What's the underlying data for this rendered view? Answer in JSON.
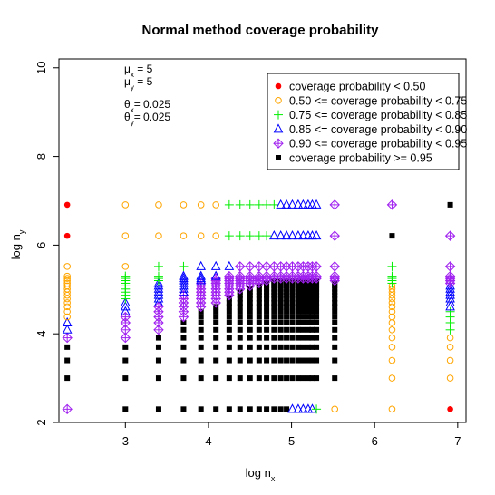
{
  "chart_data": {
    "type": "scatter",
    "title": "Normal method coverage probability",
    "xlabel": {
      "main": "log  n",
      "sub": "x"
    },
    "ylabel": {
      "main": "log  n",
      "sub": "y"
    },
    "xlim": [
      2.2,
      7.1
    ],
    "ylim": [
      2,
      10.2
    ],
    "xticks": [
      3,
      4,
      5,
      6,
      7
    ],
    "yticks": [
      2,
      4,
      6,
      8,
      10
    ],
    "annotations": [
      {
        "sym": "μ",
        "sub": "x",
        "text": "  = 5"
      },
      {
        "sym": "μ",
        "sub": "y",
        "text": "  = 5"
      },
      {
        "sym": "θ",
        "sub": "x",
        "text": "= 0.025"
      },
      {
        "sym": "θ",
        "sub": "y",
        "text": "= 0.025"
      }
    ],
    "legend_position": "top-right",
    "categories": [
      {
        "name": "coverage probability < 0.50",
        "color": "#ff0000",
        "symbol": "filled-circle"
      },
      {
        "name": "0.50 <= coverage probability < 0.75",
        "color": "#ffa500",
        "symbol": "open-circle"
      },
      {
        "name": "0.75 <= coverage probability < 0.85",
        "color": "#00ee00",
        "symbol": "plus"
      },
      {
        "name": "0.85 <= coverage probability < 0.90",
        "color": "#0000ff",
        "symbol": "triangle"
      },
      {
        "name": "0.90 <= coverage probability < 0.95",
        "color": "#a020f0",
        "symbol": "diamond-plus"
      },
      {
        "name": "coverage probability >= 0.95",
        "color": "#000000",
        "symbol": "filled-square"
      }
    ],
    "grid_x": [
      2.3,
      3.0,
      3.4,
      3.7,
      3.91,
      4.09,
      4.25,
      4.38,
      4.5,
      4.61,
      4.7,
      4.79,
      4.87,
      4.94,
      5.01,
      5.08,
      5.14,
      5.2,
      5.25,
      5.3,
      5.52,
      6.21,
      6.91
    ],
    "grid_y": [
      2.3,
      3.0,
      3.4,
      3.7,
      3.91,
      4.09,
      4.25,
      4.38,
      4.5,
      4.61,
      4.7,
      4.79,
      4.87,
      4.94,
      5.01,
      5.08,
      5.14,
      5.2,
      5.25,
      5.3,
      5.52,
      6.21,
      6.91
    ],
    "coverage_grid": [
      [
        4,
        5,
        5,
        5,
        5,
        5,
        5,
        5,
        5,
        5,
        5,
        5,
        5,
        5,
        3,
        3,
        3,
        3,
        3,
        2,
        1,
        1,
        0
      ],
      [
        5,
        5,
        5,
        5,
        5,
        5,
        5,
        5,
        5,
        5,
        5,
        5,
        5,
        5,
        5,
        5,
        5,
        5,
        5,
        5,
        5,
        1,
        1
      ],
      [
        5,
        5,
        5,
        5,
        5,
        5,
        5,
        5,
        5,
        5,
        5,
        5,
        5,
        5,
        5,
        5,
        5,
        5,
        5,
        5,
        5,
        1,
        1
      ],
      [
        5,
        5,
        5,
        5,
        5,
        5,
        5,
        5,
        5,
        5,
        5,
        5,
        5,
        5,
        5,
        5,
        5,
        5,
        5,
        5,
        5,
        1,
        1
      ],
      [
        4,
        4,
        5,
        5,
        5,
        5,
        5,
        5,
        5,
        5,
        5,
        5,
        5,
        5,
        5,
        5,
        5,
        5,
        5,
        5,
        5,
        1,
        1
      ],
      [
        3,
        4,
        4,
        5,
        5,
        5,
        5,
        5,
        5,
        5,
        5,
        5,
        5,
        5,
        5,
        5,
        5,
        5,
        5,
        5,
        5,
        1,
        2
      ],
      [
        3,
        4,
        4,
        5,
        5,
        5,
        5,
        5,
        5,
        5,
        5,
        5,
        5,
        5,
        5,
        5,
        5,
        5,
        5,
        5,
        5,
        1,
        2
      ],
      [
        1,
        4,
        4,
        4,
        5,
        5,
        5,
        5,
        5,
        5,
        5,
        5,
        5,
        5,
        5,
        5,
        5,
        5,
        5,
        5,
        5,
        1,
        2
      ],
      [
        1,
        3,
        4,
        4,
        5,
        5,
        5,
        5,
        5,
        5,
        5,
        5,
        5,
        5,
        5,
        5,
        5,
        5,
        5,
        5,
        5,
        1,
        2
      ],
      [
        1,
        3,
        4,
        4,
        4,
        5,
        5,
        5,
        5,
        5,
        5,
        5,
        5,
        5,
        5,
        5,
        5,
        5,
        5,
        5,
        5,
        1,
        3
      ],
      [
        1,
        3,
        3,
        4,
        4,
        4,
        5,
        5,
        5,
        5,
        5,
        5,
        5,
        5,
        5,
        5,
        5,
        5,
        5,
        5,
        5,
        1,
        3
      ],
      [
        1,
        2,
        3,
        4,
        4,
        4,
        5,
        5,
        5,
        5,
        5,
        5,
        5,
        5,
        5,
        5,
        5,
        5,
        5,
        5,
        5,
        1,
        3
      ],
      [
        1,
        2,
        3,
        4,
        4,
        4,
        4,
        5,
        5,
        5,
        5,
        5,
        5,
        5,
        5,
        5,
        5,
        5,
        5,
        5,
        5,
        1,
        3
      ],
      [
        1,
        2,
        3,
        3,
        4,
        4,
        4,
        5,
        5,
        5,
        5,
        5,
        5,
        5,
        5,
        5,
        5,
        5,
        5,
        5,
        5,
        1,
        3
      ],
      [
        1,
        2,
        3,
        3,
        4,
        4,
        4,
        4,
        5,
        5,
        5,
        5,
        5,
        5,
        5,
        5,
        5,
        5,
        5,
        5,
        5,
        1,
        3
      ],
      [
        1,
        2,
        3,
        3,
        4,
        4,
        4,
        4,
        4,
        5,
        5,
        5,
        5,
        5,
        5,
        5,
        5,
        5,
        5,
        5,
        5,
        1,
        3
      ],
      [
        1,
        2,
        3,
        3,
        4,
        4,
        4,
        4,
        4,
        4,
        5,
        5,
        5,
        5,
        5,
        5,
        5,
        5,
        5,
        5,
        5,
        2,
        4
      ],
      [
        1,
        2,
        2,
        3,
        3,
        4,
        4,
        4,
        4,
        4,
        4,
        5,
        5,
        5,
        5,
        5,
        5,
        5,
        5,
        5,
        4,
        2,
        4
      ],
      [
        1,
        2,
        2,
        3,
        3,
        4,
        4,
        4,
        4,
        4,
        4,
        4,
        4,
        4,
        4,
        4,
        4,
        4,
        4,
        4,
        4,
        2,
        4
      ],
      [
        1,
        2,
        2,
        3,
        3,
        3,
        4,
        4,
        4,
        4,
        4,
        4,
        4,
        4,
        4,
        4,
        4,
        4,
        4,
        4,
        4,
        2,
        4
      ],
      [
        1,
        1,
        2,
        2,
        3,
        3,
        3,
        4,
        4,
        4,
        4,
        4,
        4,
        4,
        4,
        4,
        4,
        4,
        4,
        4,
        4,
        2,
        4
      ],
      [
        0,
        1,
        1,
        1,
        1,
        1,
        2,
        2,
        2,
        2,
        2,
        3,
        3,
        3,
        3,
        3,
        3,
        3,
        3,
        3,
        4,
        5,
        4
      ],
      [
        0,
        1,
        1,
        1,
        1,
        1,
        2,
        2,
        2,
        2,
        2,
        2,
        3,
        3,
        3,
        3,
        3,
        3,
        3,
        3,
        4,
        4,
        5
      ]
    ]
  }
}
